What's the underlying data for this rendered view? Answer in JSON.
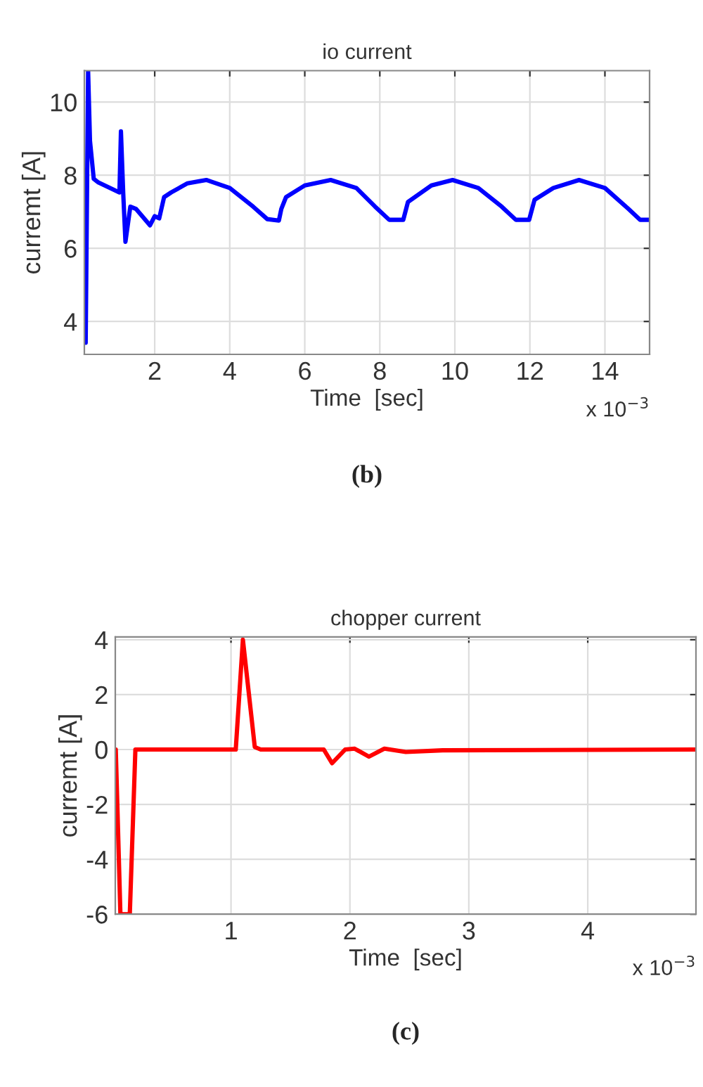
{
  "chart_data": [
    {
      "type": "line",
      "title": "io current",
      "xlabel": "Time  [sec]",
      "ylabel": "curremt [A]",
      "x": [
        0.16,
        0.225,
        0.275,
        0.375,
        0.5,
        1.06,
        1.1,
        1.16,
        1.22,
        1.35,
        1.5,
        1.875,
        1.94,
        2.0,
        2.12,
        2.25,
        2.44,
        2.875,
        3.375,
        4,
        4.625,
        5,
        5.31,
        5.375,
        5.5,
        6,
        6.69,
        7.375,
        7.875,
        8.25,
        8.625,
        8.75,
        9.375,
        9.94,
        10.625,
        11.25,
        11.625,
        11.98,
        12.125,
        12.625,
        13.31,
        14,
        14.625,
        14.94,
        15.19
      ],
      "series": [
        {
          "color": "#0000ff",
          "values": [
            3.42,
            10.86,
            8.94,
            7.9,
            7.8,
            7.53,
            9.2,
            7.53,
            6.18,
            7.14,
            7.08,
            6.63,
            6.76,
            6.88,
            6.82,
            7.4,
            7.53,
            7.78,
            7.87,
            7.65,
            7.14,
            6.8,
            6.76,
            7.08,
            7.4,
            7.72,
            7.87,
            7.65,
            7.14,
            6.78,
            6.78,
            7.27,
            7.72,
            7.87,
            7.65,
            7.14,
            6.78,
            6.78,
            7.33,
            7.65,
            7.87,
            7.65,
            7.08,
            6.78,
            6.78
          ]
        }
      ],
      "xlim": [
        0.125,
        15.19
      ],
      "xticks": [
        2,
        4,
        6,
        8,
        10,
        12,
        14
      ],
      "ylim": [
        3.1,
        10.86
      ],
      "yticks": [
        4,
        6,
        8,
        10
      ],
      "grid": true,
      "annotations": [
        "x 10$^{−3}$",
        "(b)"
      ]
    },
    {
      "type": "line",
      "title": "chopper current",
      "xlabel": "Time  [sec]",
      "ylabel": "curremt [A]",
      "x": [
        0.031,
        0.07,
        0.149,
        0.196,
        1.04,
        1.1,
        1.2,
        1.25,
        1.78,
        1.85,
        1.96,
        2.04,
        2.16,
        2.29,
        2.47,
        2.78,
        4.91
      ],
      "series": [
        {
          "color": "#ff0000",
          "values": [
            0,
            -6,
            -6,
            0,
            0,
            4,
            0.09,
            0,
            0,
            -0.5,
            0,
            0.03,
            -0.26,
            0.03,
            -0.09,
            -0.03,
            0
          ]
        }
      ],
      "xlim": [
        0.027,
        4.91
      ],
      "xticks": [
        1,
        2,
        3,
        4
      ],
      "ylim": [
        -6,
        4.1
      ],
      "yticks": [
        -6,
        -4,
        -2,
        0,
        2,
        4
      ],
      "grid": true,
      "annotations": [
        "x 10$^{−3}$",
        "(c)"
      ]
    }
  ]
}
